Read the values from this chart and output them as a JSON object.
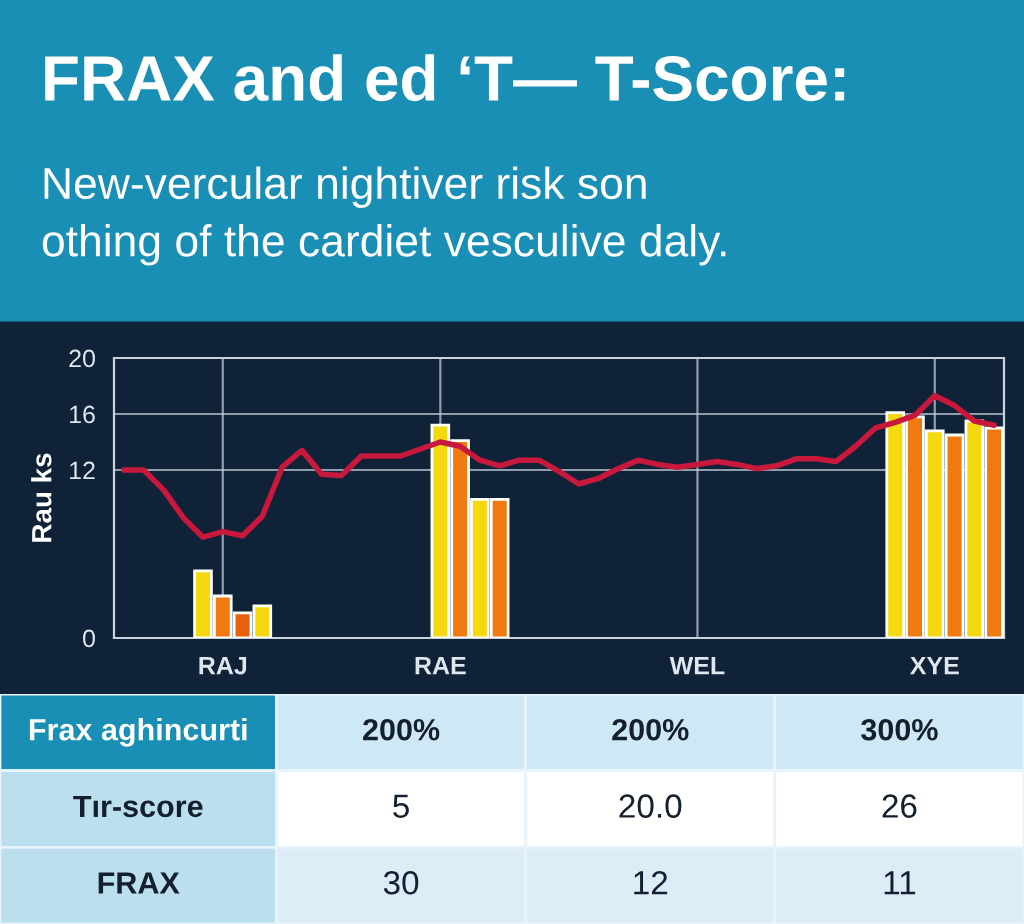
{
  "chart_data": [
    {
      "type": "line",
      "title": "FRAX and ed ‘T— T-Score:",
      "subtitle": "New-vercular nightiver risk son\nothing of the cardiet vesculive daly.",
      "ylabel": "Rau ks",
      "categories": [
        null,
        null,
        null,
        null,
        null,
        "RAJ",
        null,
        null,
        null,
        null,
        null,
        null,
        null,
        null,
        null,
        null,
        "RAE",
        null,
        null,
        null,
        null,
        null,
        null,
        null,
        null,
        null,
        null,
        null,
        null,
        "WEL",
        null,
        null,
        null,
        null,
        null,
        null,
        null,
        null,
        null,
        null,
        null,
        "XYE",
        null,
        null,
        null
      ],
      "ylim": [
        0,
        20
      ],
      "yticks": [
        0,
        12,
        16,
        20
      ],
      "grid": true,
      "series": [
        {
          "type": "bar",
          "values": [
            null,
            null,
            null,
            null,
            4.8,
            3.0,
            1.8,
            2.3,
            null,
            null,
            null,
            null,
            null,
            null,
            null,
            null,
            15.2,
            14.1,
            9.9,
            9.9,
            null,
            null,
            null,
            null,
            null,
            null,
            null,
            null,
            null,
            null,
            null,
            null,
            null,
            null,
            null,
            null,
            null,
            null,
            null,
            16.1,
            15.8,
            14.8,
            14.5,
            15.5,
            15.0
          ],
          "colors": [
            null,
            null,
            null,
            null,
            "#f5d90f",
            "#f07a10",
            "#e8600e",
            "#f5d90f",
            null,
            null,
            null,
            null,
            null,
            null,
            null,
            null,
            "#f5d90f",
            "#f07a10",
            "#f5d90f",
            "#f07a10",
            null,
            null,
            null,
            null,
            null,
            null,
            null,
            null,
            null,
            null,
            null,
            null,
            null,
            null,
            null,
            null,
            null,
            null,
            null,
            "#f5d90f",
            "#f07a10",
            "#f5d90f",
            "#f07a10",
            "#f5d90f",
            "#f07a10"
          ]
        },
        {
          "type": "line",
          "color": "#c8193c",
          "values": [
            12.0,
            12.0,
            10.6,
            8.6,
            7.2,
            7.6,
            7.3,
            8.7,
            12.2,
            13.4,
            11.7,
            11.6,
            13.0,
            13.0,
            13.0,
            13.5,
            14.0,
            13.7,
            12.7,
            12.3,
            12.7,
            12.7,
            11.9,
            11.0,
            11.4,
            12.1,
            12.7,
            12.4,
            12.2,
            12.4,
            12.6,
            12.4,
            12.1,
            12.3,
            12.8,
            12.8,
            12.6,
            13.7,
            15.0,
            15.4,
            15.9,
            17.3,
            16.6,
            15.5,
            15.2
          ]
        }
      ]
    },
    {
      "type": "other",
      "categories": [
        "Frax aghincurti",
        "200%",
        "200%",
        "300%"
      ],
      "y_categories": [
        "Tır-score",
        "FRAX"
      ],
      "annotations": [
        "5",
        "20.0",
        "26",
        "30",
        "12",
        "11"
      ]
    }
  ]
}
